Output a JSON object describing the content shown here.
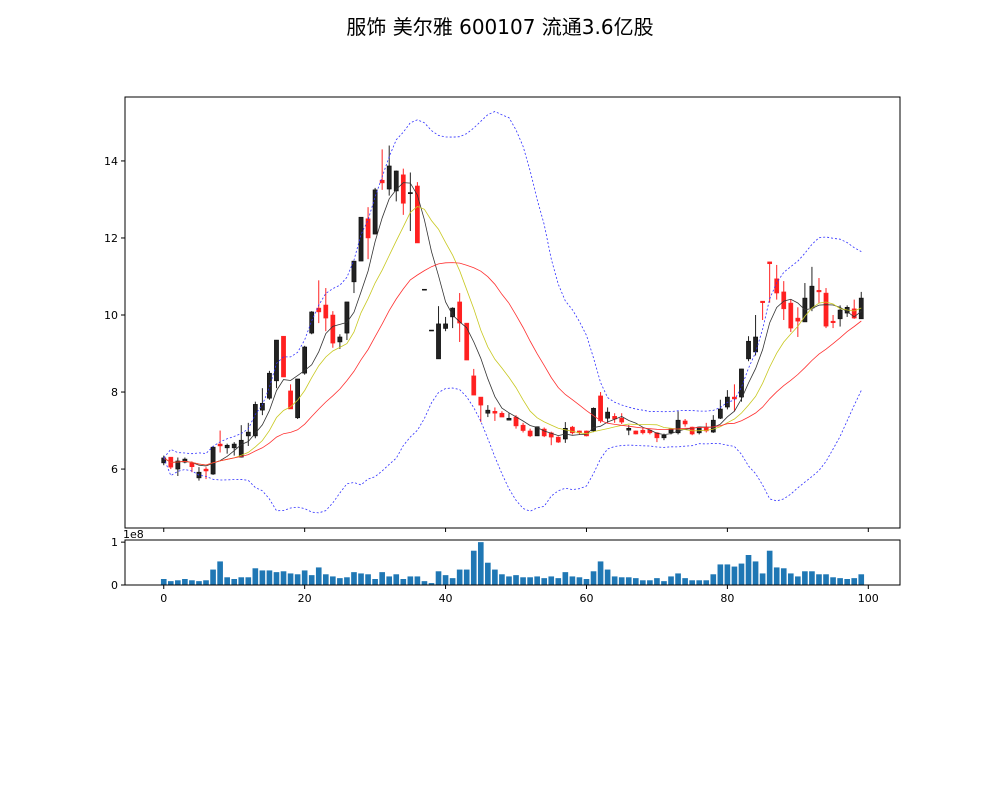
{
  "chart_data": {
    "type": "candlestick",
    "title": "服饰 美尔雅 600107 流通3.6亿股",
    "colors": {
      "up": "#222222",
      "down": "#ff2020",
      "ma5": "#333333",
      "ma10": "#c8c820",
      "ma20": "#ff3030",
      "boll": "#3030ff",
      "volume": "#1f77b4"
    },
    "indicators": {
      "ma_periods": [
        5,
        10,
        20
      ],
      "bollinger": {
        "period": 20,
        "k": 2
      }
    },
    "price_axis": {
      "ylim": [
        4.47,
        15.66
      ],
      "ticks": [
        "6",
        "8",
        "10",
        "12",
        "14"
      ]
    },
    "volume_axis": {
      "ylim": [
        0,
        1.05
      ],
      "ticks": [
        "0",
        "1"
      ],
      "offset_label": "1e8"
    },
    "x_axis": {
      "xlim": [
        -5.5,
        104.5
      ],
      "ticks": [
        "0",
        "20",
        "40",
        "60",
        "80",
        "100"
      ]
    },
    "ohlc": [
      [
        6.16,
        6.35,
        6.1,
        6.29
      ],
      [
        6.31,
        6.31,
        6.0,
        6.05
      ],
      [
        6.0,
        6.3,
        5.82,
        6.21
      ],
      [
        6.18,
        6.3,
        6.15,
        6.26
      ],
      [
        6.16,
        6.2,
        5.92,
        6.06
      ],
      [
        5.77,
        6.05,
        5.7,
        5.92
      ],
      [
        6.0,
        6.05,
        5.74,
        5.95
      ],
      [
        5.87,
        6.6,
        5.85,
        6.57
      ],
      [
        6.65,
        7.0,
        6.43,
        6.6
      ],
      [
        6.55,
        6.66,
        6.4,
        6.62
      ],
      [
        6.55,
        6.7,
        6.35,
        6.65
      ],
      [
        6.31,
        7.14,
        6.3,
        6.75
      ],
      [
        6.86,
        7.2,
        6.6,
        6.96
      ],
      [
        6.86,
        7.75,
        6.8,
        7.68
      ],
      [
        7.53,
        8.1,
        7.4,
        7.71
      ],
      [
        7.84,
        8.55,
        7.8,
        8.49
      ],
      [
        8.29,
        9.35,
        8.1,
        9.35
      ],
      [
        9.45,
        9.45,
        8.39,
        8.39
      ],
      [
        8.03,
        8.2,
        7.56,
        7.56
      ],
      [
        7.33,
        8.34,
        7.3,
        8.34
      ],
      [
        8.49,
        9.2,
        8.45,
        9.17
      ],
      [
        9.53,
        10.1,
        9.5,
        10.08
      ],
      [
        10.18,
        10.9,
        9.79,
        10.08
      ],
      [
        10.26,
        10.7,
        9.58,
        9.92
      ],
      [
        10.0,
        10.1,
        9.15,
        9.27
      ],
      [
        9.3,
        9.5,
        9.12,
        9.43
      ],
      [
        9.53,
        10.34,
        9.35,
        10.34
      ],
      [
        10.86,
        11.4,
        10.57,
        11.4
      ],
      [
        11.4,
        12.54,
        11.4,
        12.54
      ],
      [
        12.5,
        12.8,
        11.45,
        12.0
      ],
      [
        12.1,
        13.3,
        12.1,
        13.25
      ],
      [
        13.5,
        14.3,
        13.25,
        13.43
      ],
      [
        13.27,
        14.4,
        13.1,
        13.87
      ],
      [
        13.22,
        13.75,
        12.95,
        13.74
      ],
      [
        13.64,
        13.8,
        12.6,
        12.9
      ],
      [
        13.15,
        13.7,
        12.18,
        13.18
      ],
      [
        13.35,
        13.45,
        11.87,
        11.87
      ],
      [
        10.67,
        10.67,
        10.67,
        10.67
      ],
      [
        9.61,
        9.61,
        9.61,
        9.61
      ],
      [
        8.86,
        10.23,
        8.86,
        9.77
      ],
      [
        9.65,
        9.95,
        9.58,
        9.77
      ],
      [
        9.95,
        10.2,
        9.66,
        10.18
      ],
      [
        10.34,
        10.57,
        9.3,
        9.79
      ],
      [
        9.79,
        9.79,
        8.83,
        8.83
      ],
      [
        8.42,
        8.6,
        7.92,
        7.92
      ],
      [
        7.87,
        7.87,
        7.22,
        7.66
      ],
      [
        7.45,
        7.66,
        7.35,
        7.53
      ],
      [
        7.5,
        7.6,
        7.25,
        7.45
      ],
      [
        7.45,
        7.5,
        7.35,
        7.35
      ],
      [
        7.27,
        7.45,
        7.27,
        7.32
      ],
      [
        7.35,
        7.4,
        7.05,
        7.12
      ],
      [
        7.14,
        7.2,
        6.95,
        7.0
      ],
      [
        6.99,
        7.05,
        6.83,
        6.86
      ],
      [
        6.86,
        7.1,
        6.86,
        7.1
      ],
      [
        7.04,
        7.08,
        6.83,
        6.86
      ],
      [
        6.94,
        6.97,
        6.62,
        6.83
      ],
      [
        6.83,
        6.85,
        6.68,
        6.7
      ],
      [
        6.78,
        7.22,
        6.68,
        7.06
      ],
      [
        7.09,
        7.12,
        6.9,
        6.94
      ],
      [
        6.99,
        7.0,
        6.9,
        6.94
      ],
      [
        6.99,
        7.0,
        6.85,
        6.86
      ],
      [
        6.99,
        7.6,
        6.96,
        7.58
      ],
      [
        7.9,
        8.0,
        7.2,
        7.25
      ],
      [
        7.32,
        7.6,
        7.2,
        7.48
      ],
      [
        7.37,
        7.45,
        7.2,
        7.3
      ],
      [
        7.32,
        7.45,
        7.17,
        7.22
      ],
      [
        7.01,
        7.14,
        6.88,
        7.06
      ],
      [
        6.99,
        7.0,
        6.9,
        6.91
      ],
      [
        7.01,
        7.06,
        6.9,
        6.94
      ],
      [
        7.01,
        7.03,
        6.9,
        6.94
      ],
      [
        6.94,
        6.96,
        6.7,
        6.81
      ],
      [
        6.81,
        6.92,
        6.75,
        6.88
      ],
      [
        6.94,
        7.06,
        6.9,
        7.04
      ],
      [
        6.94,
        7.5,
        6.9,
        7.27
      ],
      [
        7.25,
        7.3,
        7.1,
        7.17
      ],
      [
        7.09,
        7.1,
        6.88,
        6.91
      ],
      [
        6.94,
        7.1,
        6.9,
        7.09
      ],
      [
        7.09,
        7.2,
        6.95,
        6.99
      ],
      [
        6.96,
        7.4,
        6.94,
        7.27
      ],
      [
        7.32,
        7.8,
        7.3,
        7.56
      ],
      [
        7.61,
        8.05,
        7.55,
        7.87
      ],
      [
        7.87,
        8.2,
        7.5,
        7.82
      ],
      [
        7.87,
        8.6,
        7.75,
        8.6
      ],
      [
        8.86,
        9.45,
        8.8,
        9.32
      ],
      [
        9.04,
        10.0,
        8.95,
        9.43
      ],
      [
        10.36,
        10.36,
        9.87,
        10.32
      ],
      [
        11.38,
        11.38,
        10.32,
        11.33
      ],
      [
        10.94,
        11.3,
        10.4,
        10.57
      ],
      [
        10.6,
        10.88,
        9.87,
        10.16
      ],
      [
        10.31,
        10.4,
        9.56,
        9.66
      ],
      [
        9.92,
        10.2,
        9.43,
        9.84
      ],
      [
        9.82,
        10.83,
        9.82,
        10.44
      ],
      [
        10.18,
        11.25,
        10.1,
        10.75
      ],
      [
        10.64,
        10.96,
        10.3,
        10.6
      ],
      [
        10.57,
        10.7,
        9.66,
        9.71
      ],
      [
        9.84,
        10.0,
        9.66,
        9.8
      ],
      [
        9.9,
        10.25,
        9.7,
        10.13
      ],
      [
        10.05,
        10.25,
        9.95,
        10.2
      ],
      [
        10.16,
        10.4,
        9.9,
        9.92
      ],
      [
        9.9,
        10.6,
        9.9,
        10.44
      ]
    ],
    "volume_1e8": [
      0.14,
      0.09,
      0.11,
      0.14,
      0.11,
      0.09,
      0.11,
      0.36,
      0.55,
      0.18,
      0.14,
      0.18,
      0.18,
      0.39,
      0.34,
      0.34,
      0.3,
      0.32,
      0.27,
      0.25,
      0.34,
      0.23,
      0.41,
      0.25,
      0.2,
      0.16,
      0.18,
      0.3,
      0.27,
      0.25,
      0.14,
      0.3,
      0.2,
      0.25,
      0.14,
      0.2,
      0.2,
      0.09,
      0.045,
      0.32,
      0.23,
      0.16,
      0.36,
      0.36,
      0.8,
      1.0,
      0.52,
      0.36,
      0.25,
      0.2,
      0.23,
      0.18,
      0.18,
      0.2,
      0.16,
      0.2,
      0.16,
      0.3,
      0.2,
      0.18,
      0.14,
      0.32,
      0.55,
      0.36,
      0.2,
      0.18,
      0.18,
      0.16,
      0.11,
      0.11,
      0.16,
      0.09,
      0.2,
      0.27,
      0.16,
      0.11,
      0.11,
      0.11,
      0.25,
      0.48,
      0.48,
      0.43,
      0.5,
      0.7,
      0.55,
      0.27,
      0.8,
      0.41,
      0.39,
      0.27,
      0.2,
      0.32,
      0.32,
      0.25,
      0.25,
      0.18,
      0.16,
      0.14,
      0.16,
      0.25
    ]
  }
}
